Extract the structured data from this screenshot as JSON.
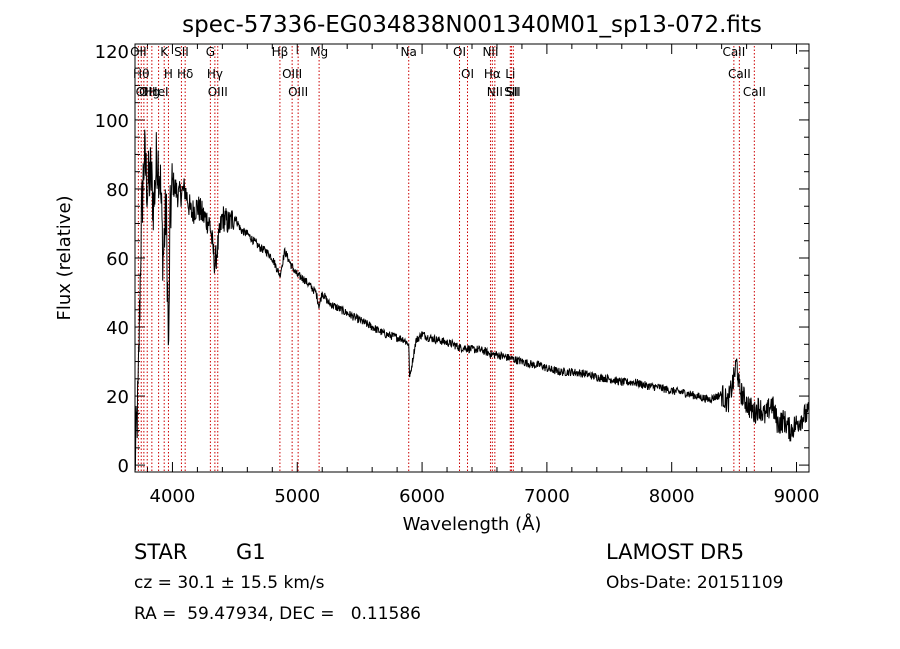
{
  "chart_data": {
    "type": "line",
    "title": "spec-57336-EG034838N001340M01_sp13-072.fits",
    "xlabel": "Wavelength (Å)",
    "ylabel": "Flux (relative)",
    "xlim": [
      3700,
      9100
    ],
    "ylim": [
      -2,
      122
    ],
    "x_ticks": [
      4000,
      5000,
      6000,
      7000,
      8000,
      9000
    ],
    "y_ticks": [
      0,
      20,
      40,
      60,
      80,
      100,
      120
    ],
    "x_minor_step": 200,
    "y_minor_step": 5,
    "grid": false,
    "line_color": "#000000",
    "marker_color": "#cc0000",
    "series": [
      {
        "x": [
          3700,
          3725,
          3750,
          3775,
          3800,
          3825,
          3850,
          3875,
          3900,
          3925,
          3950,
          3970,
          3980,
          4000,
          4050,
          4100,
          4150,
          4200,
          4250,
          4300,
          4340,
          4400,
          4450,
          4500,
          4550,
          4600,
          4650,
          4700,
          4750,
          4800,
          4861,
          4900,
          4950,
          5000,
          5050,
          5100,
          5150,
          5175,
          5200,
          5250,
          5300,
          5350,
          5400,
          5450,
          5500,
          5550,
          5600,
          5650,
          5700,
          5750,
          5800,
          5850,
          5893,
          5900,
          5950,
          6000,
          6050,
          6100,
          6150,
          6200,
          6250,
          6300,
          6350,
          6400,
          6450,
          6500,
          6563,
          6600,
          6650,
          6700,
          6750,
          6800,
          6850,
          6900,
          6950,
          7000,
          7100,
          7200,
          7300,
          7400,
          7500,
          7600,
          7700,
          7800,
          7900,
          8000,
          8100,
          8200,
          8300,
          8400,
          8450,
          8498,
          8520,
          8542,
          8570,
          8600,
          8662,
          8700,
          8750,
          8800,
          8850,
          8900,
          8950,
          9000,
          9050,
          9100
        ],
        "y": [
          0,
          20,
          70,
          90,
          80,
          85,
          75,
          90,
          85,
          60,
          75,
          30,
          70,
          82,
          78,
          80,
          73,
          75,
          72,
          70,
          58,
          72,
          70,
          72,
          68,
          67,
          65,
          63,
          62,
          60,
          55,
          62,
          58,
          55,
          54,
          52,
          50,
          46,
          50,
          47,
          46,
          45,
          44,
          43,
          42,
          41,
          40,
          39,
          38,
          37.5,
          37,
          36.5,
          35,
          25,
          36,
          38,
          37,
          36.5,
          36,
          35.5,
          35,
          34,
          34,
          33.5,
          33.5,
          33,
          32,
          32,
          31.5,
          31,
          30.5,
          30,
          29.5,
          29,
          29,
          28,
          27,
          27,
          26.5,
          25.5,
          25,
          24,
          24,
          23,
          22.5,
          21.5,
          21,
          20,
          19,
          20.5,
          18,
          25,
          30,
          22,
          20,
          18,
          15,
          17,
          14,
          18,
          12,
          13,
          10,
          12,
          14,
          15
        ]
      }
    ],
    "line_markers": [
      {
        "x": 3727,
        "label": "OII"
      },
      {
        "x": 3750,
        "label": "Hθ"
      },
      {
        "x": 3771,
        "label": "OII"
      },
      {
        "x": 3798,
        "label": "OII"
      },
      {
        "x": 3835,
        "label": "Hg"
      },
      {
        "x": 3889,
        "label": "HeI"
      },
      {
        "x": 3934,
        "label": "K"
      },
      {
        "x": 3968,
        "label": "H"
      },
      {
        "x": 4072,
        "label": "SII"
      },
      {
        "x": 4102,
        "label": "Hδ"
      },
      {
        "x": 4304,
        "label": "G"
      },
      {
        "x": 4340,
        "label": "Hγ"
      },
      {
        "x": 4363,
        "label": "OIII"
      },
      {
        "x": 4861,
        "label": "Hβ"
      },
      {
        "x": 4959,
        "label": "OIII"
      },
      {
        "x": 5007,
        "label": "OIII"
      },
      {
        "x": 5175,
        "label": "Mg"
      },
      {
        "x": 5893,
        "label": "Na"
      },
      {
        "x": 6300,
        "label": "OI"
      },
      {
        "x": 6364,
        "label": "OI"
      },
      {
        "x": 6548,
        "label": "NII"
      },
      {
        "x": 6563,
        "label": "Hα"
      },
      {
        "x": 6583,
        "label": "NII"
      },
      {
        "x": 6707,
        "label": "Li"
      },
      {
        "x": 6716,
        "label": "SII"
      },
      {
        "x": 6731,
        "label": "SII"
      },
      {
        "x": 8498,
        "label": "CaII"
      },
      {
        "x": 8542,
        "label": "CaII"
      },
      {
        "x": 8662,
        "label": "CaII"
      }
    ]
  },
  "info": {
    "object_class": "STAR",
    "subclass": "G1",
    "survey": "LAMOST DR5",
    "redshift": "cz = 30.1 ± 15.5 km/s",
    "obs_date": "Obs-Date: 20151109",
    "coords": "RA =  59.47934, DEC =   0.11586"
  }
}
